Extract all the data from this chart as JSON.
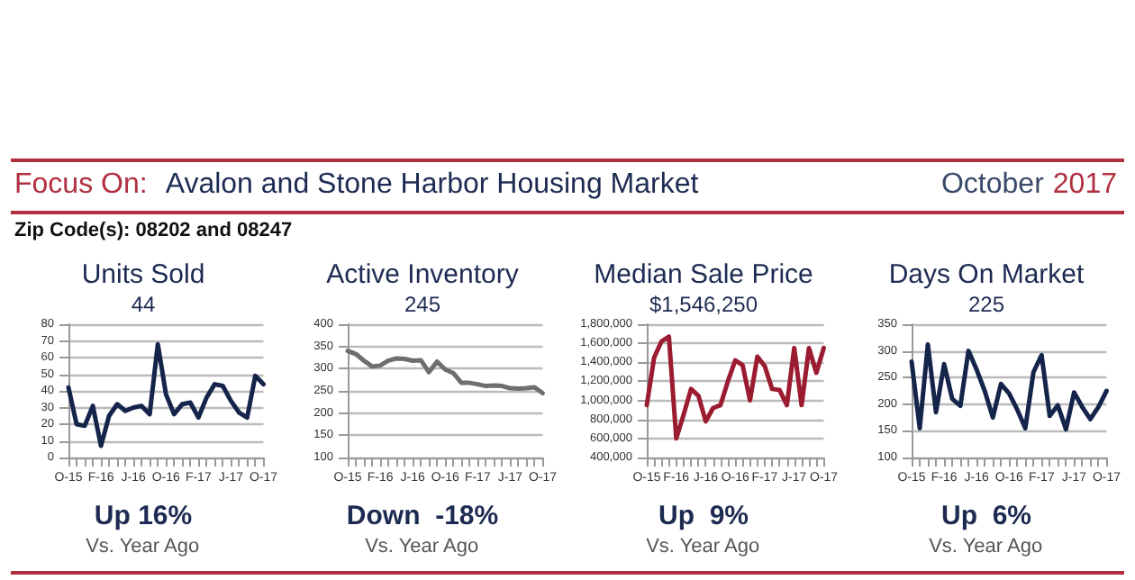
{
  "chart_data": [
    {
      "type": "other",
      "annotations": [
        "Focus On:",
        "Avalon and Stone Harbor Housing Market",
        "October",
        "2017",
        "Zip Code(s): 08202 and 08247"
      ]
    },
    {
      "type": "line",
      "title": "Units Sold",
      "subtitle": "44",
      "annotations": [
        "Up 16%",
        "Vs. Year Ago"
      ],
      "categories": [
        "O-15",
        null,
        null,
        null,
        "F-16",
        null,
        null,
        null,
        "J-16",
        null,
        null,
        null,
        "O-16",
        null,
        null,
        null,
        "F-17",
        null,
        null,
        null,
        "J-17",
        null,
        null,
        null,
        "O-17"
      ],
      "series": [
        {
          "color": "#14244a",
          "values": [
            42,
            20,
            19,
            31,
            7,
            25,
            32,
            28,
            30,
            31,
            26,
            68,
            38,
            26,
            32,
            33,
            24,
            36,
            44,
            43,
            34,
            27,
            24,
            49,
            44
          ]
        }
      ],
      "ylim": [
        0,
        80
      ],
      "yticks": [
        0,
        10,
        20,
        30,
        40,
        50,
        60,
        70,
        80
      ],
      "grid": "y",
      "marker": "none"
    },
    {
      "type": "line",
      "title": "Active Inventory",
      "subtitle": "245",
      "annotations": [
        "Down  -18%",
        "Vs. Year Ago"
      ],
      "categories": [
        "O-15",
        null,
        null,
        null,
        "F-16",
        null,
        null,
        null,
        "J-16",
        null,
        null,
        null,
        "O-16",
        null,
        null,
        null,
        "F-17",
        null,
        null,
        null,
        "J-17",
        null,
        null,
        null,
        "O-17"
      ],
      "series": [
        {
          "color": "#6e6e6e",
          "values": [
            340,
            333,
            318,
            305,
            307,
            318,
            323,
            322,
            318,
            319,
            292,
            316,
            298,
            290,
            268,
            268,
            265,
            261,
            262,
            261,
            256,
            255,
            256,
            258,
            245
          ]
        }
      ],
      "ylim": [
        100,
        400
      ],
      "yticks": [
        100,
        150,
        200,
        250,
        300,
        350,
        400
      ],
      "grid": "y",
      "marker": "none"
    },
    {
      "type": "line",
      "title": "Median Sale Price",
      "subtitle": "$1,546,250",
      "annotations": [
        "Up  9%",
        "Vs. Year Ago"
      ],
      "categories": [
        "O-15",
        null,
        null,
        null,
        "F-16",
        null,
        null,
        null,
        "J-16",
        null,
        null,
        null,
        "O-16",
        null,
        null,
        null,
        "F-17",
        null,
        null,
        null,
        "J-17",
        null,
        null,
        null,
        "O-17"
      ],
      "series": [
        {
          "color": "#9b1b30",
          "values": [
            950000,
            1450000,
            1620000,
            1670000,
            600000,
            850000,
            1120000,
            1050000,
            780000,
            920000,
            950000,
            1200000,
            1420000,
            1370000,
            1000000,
            1460000,
            1360000,
            1120000,
            1110000,
            950000,
            1550000,
            950000,
            1550000,
            1290000,
            1550000
          ]
        }
      ],
      "ylim": [
        400000,
        1800000
      ],
      "yticks": [
        {
          "value": 400000,
          "label": "400,000"
        },
        {
          "value": 600000,
          "label": "600,000"
        },
        {
          "value": 800000,
          "label": "800,000"
        },
        {
          "value": 1000000,
          "label": "1,000,000"
        },
        {
          "value": 1200000,
          "label": "1,200,000"
        },
        {
          "value": 1400000,
          "label": "1,400,000"
        },
        {
          "value": 1600000,
          "label": "1,600,000"
        },
        {
          "value": 1800000,
          "label": "1,800,000"
        }
      ],
      "grid": "y",
      "marker": "none"
    },
    {
      "type": "line",
      "title": "Days On Market",
      "subtitle": "225",
      "annotations": [
        "Up  6%",
        "Vs. Year Ago"
      ],
      "categories": [
        "O-15",
        null,
        null,
        null,
        "F-16",
        null,
        null,
        null,
        "J-16",
        null,
        null,
        null,
        "O-16",
        null,
        null,
        null,
        "F-17",
        null,
        null,
        null,
        "J-17",
        null,
        null,
        null,
        "O-17"
      ],
      "series": [
        {
          "color": "#14244a",
          "values": [
            280,
            155,
            312,
            185,
            275,
            210,
            197,
            300,
            265,
            225,
            175,
            238,
            220,
            190,
            155,
            260,
            292,
            178,
            198,
            153,
            222,
            195,
            172,
            195,
            225
          ]
        }
      ],
      "ylim": [
        100,
        350
      ],
      "yticks": [
        100,
        150,
        200,
        250,
        300,
        350
      ],
      "grid": "y",
      "marker": "none"
    }
  ]
}
